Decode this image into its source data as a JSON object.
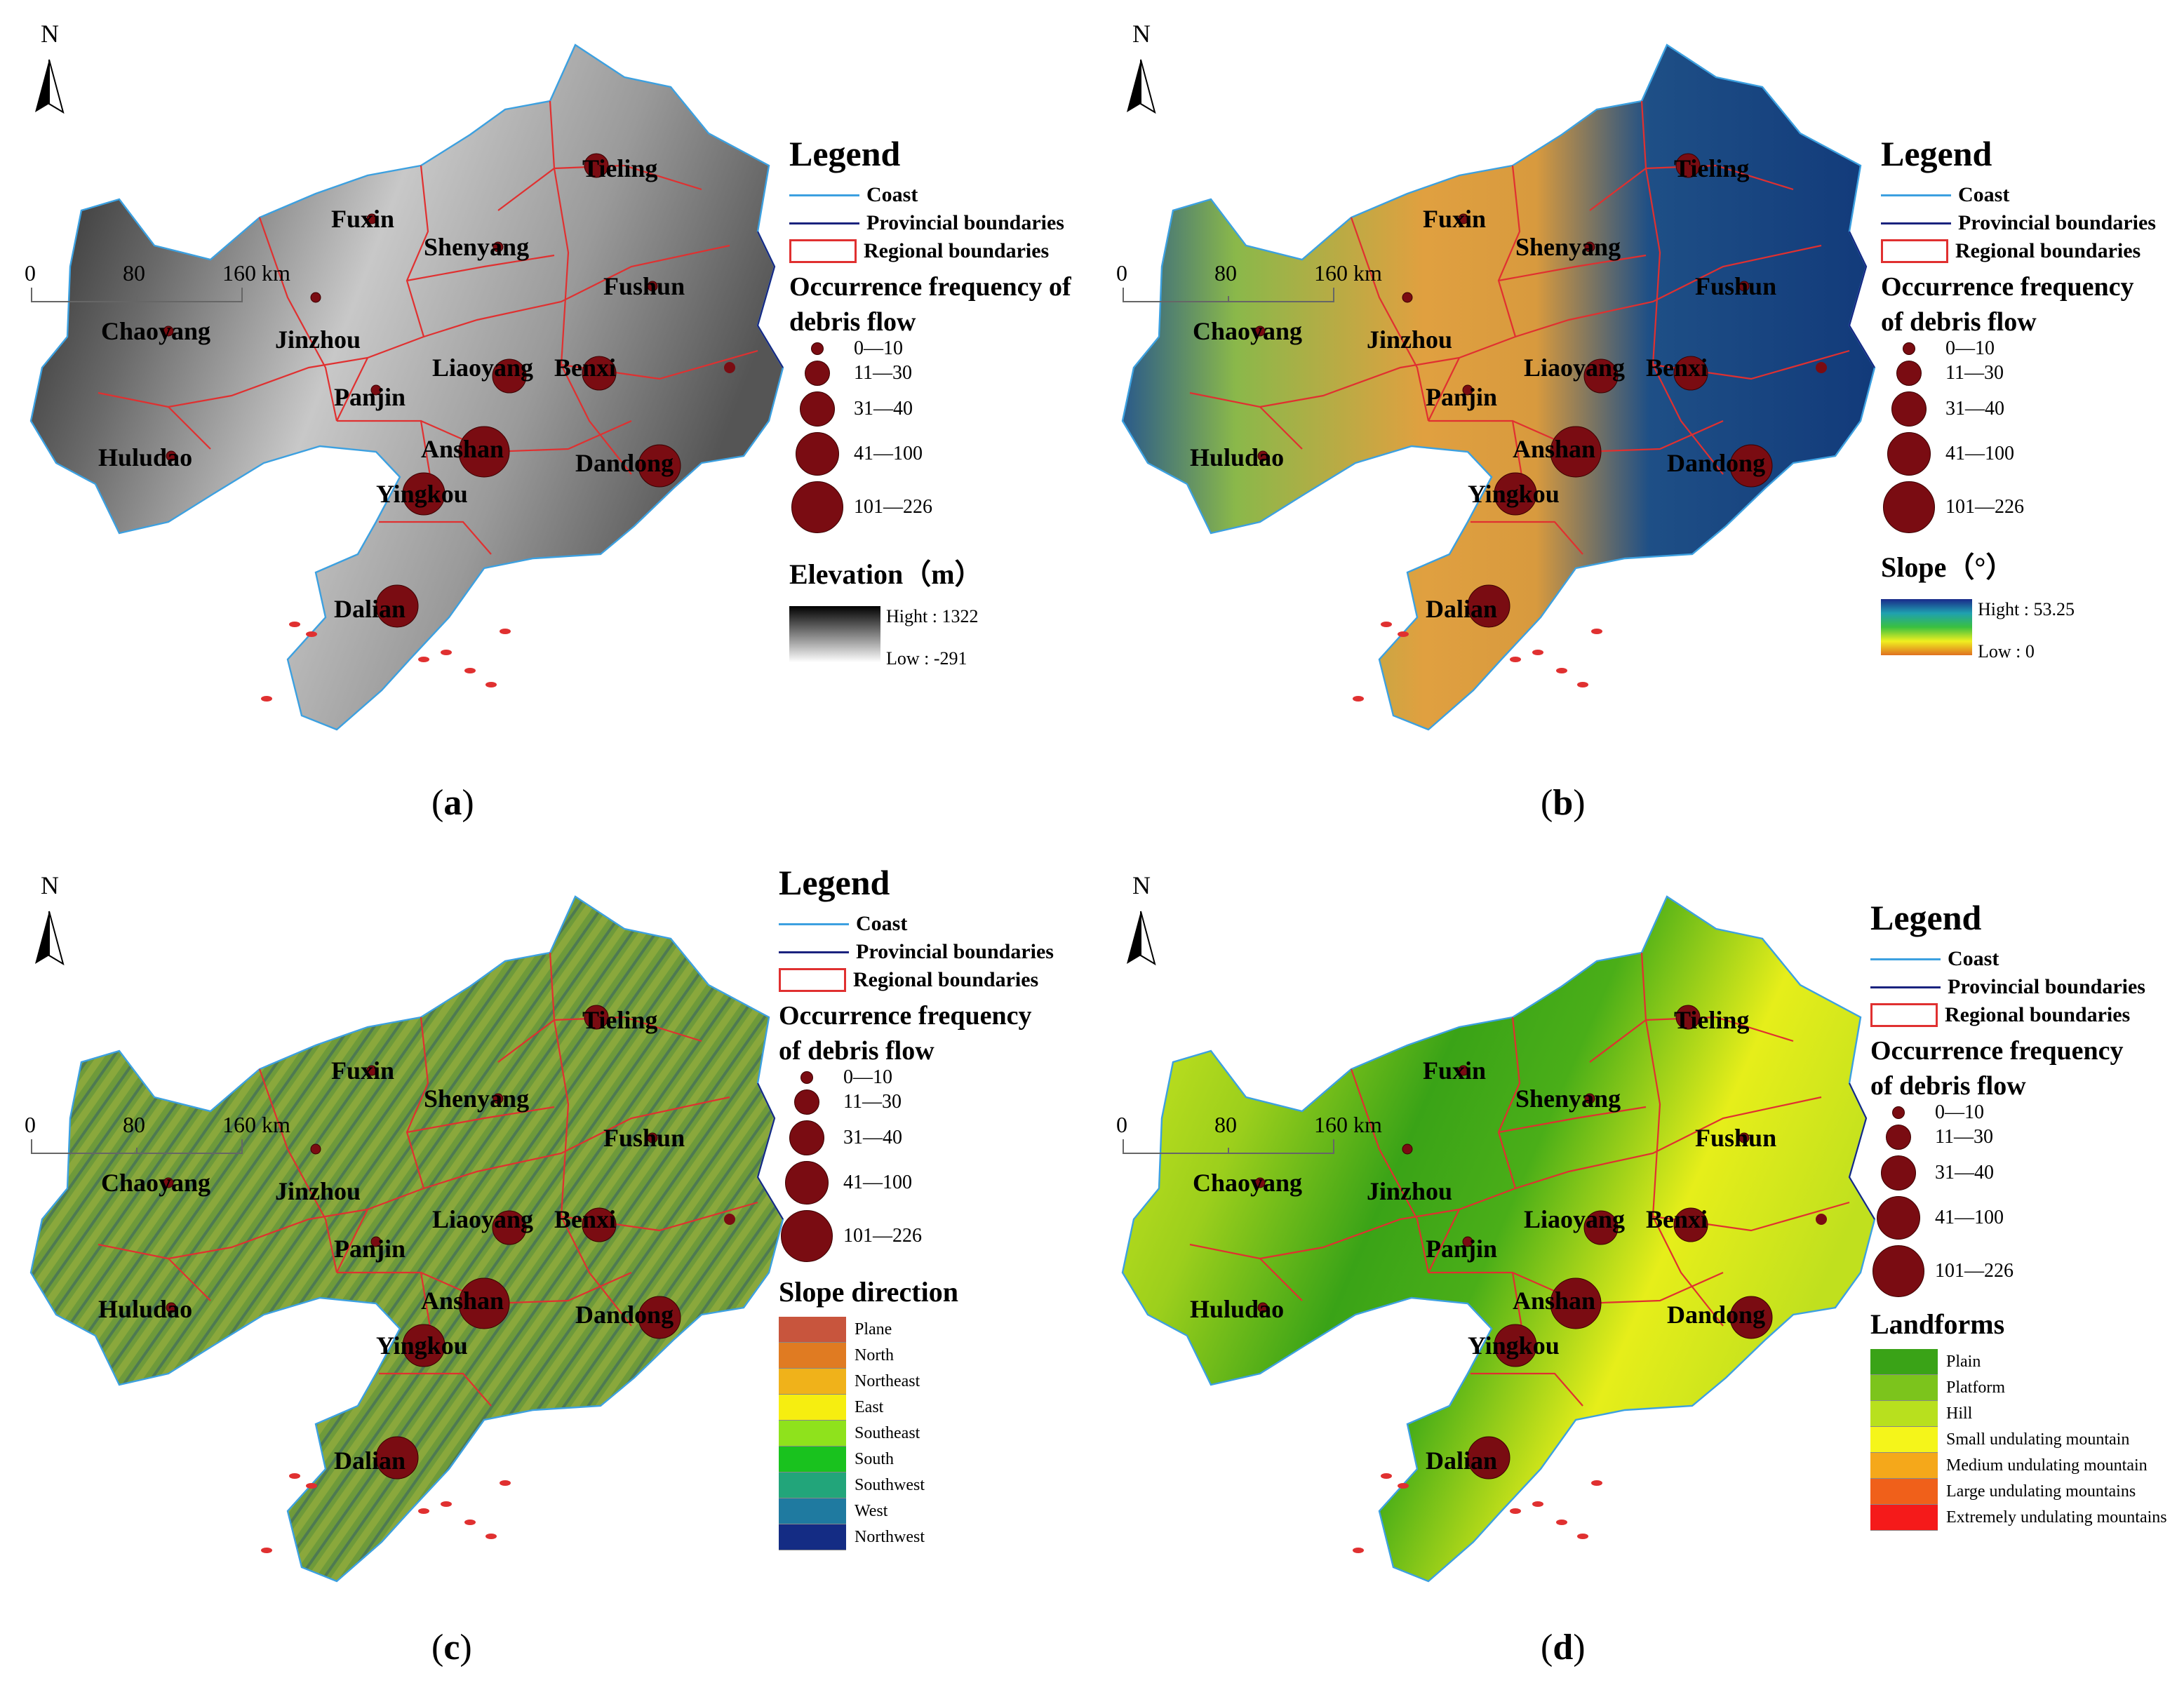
{
  "north_label": "N",
  "cities": [
    {
      "name": "Tieling",
      "freq": "11-30"
    },
    {
      "name": "Fuxin",
      "freq": "0-10"
    },
    {
      "name": "Shenyang",
      "freq": "0-10"
    },
    {
      "name": "Fushun",
      "freq": "0-10"
    },
    {
      "name": "Chaoyang",
      "freq": "0-10"
    },
    {
      "name": "Jinzhou",
      "freq": "0-10"
    },
    {
      "name": "Liaoyang",
      "freq": "31-40"
    },
    {
      "name": "Benxi",
      "freq": "31-40"
    },
    {
      "name": "Panjin",
      "freq": "0-10"
    },
    {
      "name": "Huludao",
      "freq": "0-10"
    },
    {
      "name": "Anshan",
      "freq": "101-226"
    },
    {
      "name": "Dandong",
      "freq": "41-100"
    },
    {
      "name": "Yingkou",
      "freq": "41-100"
    },
    {
      "name": "Dalian",
      "freq": "41-100"
    }
  ],
  "scale": {
    "ticks": [
      "0",
      "80",
      "160 km"
    ]
  },
  "legend": {
    "title": "Legend",
    "coast": "Coast",
    "provincial": "Provincial boundaries",
    "regional": "Regional boundaries",
    "occurrence_title": "Occurrence frequency of debris flow",
    "frequency_classes": [
      "0—10",
      "11—30",
      "31—40",
      "41—100",
      "101—226"
    ]
  },
  "panels": {
    "a": {
      "caption": "a",
      "layer_title": "Elevation（m）",
      "high": "Hight : 1322",
      "low": "Low : -291"
    },
    "b": {
      "caption": "b",
      "layer_title": "Slope（°）",
      "high": "Hight : 53.25",
      "low": "Low : 0"
    },
    "c": {
      "caption": "c",
      "layer_title": "Slope direction",
      "classes": [
        {
          "label": "Plane",
          "color": "#c8553d"
        },
        {
          "label": "North",
          "color": "#e07b22"
        },
        {
          "label": "Northeast",
          "color": "#f0b21a"
        },
        {
          "label": "East",
          "color": "#f6ee10"
        },
        {
          "label": "Southeast",
          "color": "#8fe21c"
        },
        {
          "label": "South",
          "color": "#19c21e"
        },
        {
          "label": "Southwest",
          "color": "#22a57a"
        },
        {
          "label": "West",
          "color": "#1f7aa0"
        },
        {
          "label": "Northwest",
          "color": "#142c84"
        }
      ]
    },
    "d": {
      "caption": "d",
      "layer_title": "Landforms",
      "classes": [
        {
          "label": "Plain",
          "color": "#3aa317"
        },
        {
          "label": "Platform",
          "color": "#7cc41c"
        },
        {
          "label": "Hill",
          "color": "#b8e01e"
        },
        {
          "label": "Small undulating mountain",
          "color": "#f5f51a"
        },
        {
          "label": "Medium undulating mountain",
          "color": "#f5a81a"
        },
        {
          "label": "Large undulating mountains",
          "color": "#f0601a"
        },
        {
          "label": "Extremely undulating mountains",
          "color": "#f51a1a"
        }
      ]
    }
  },
  "colors": {
    "bubble": "#7a0c12",
    "regional_boundary": "#e03030",
    "provincial_boundary": "#1a237e",
    "coast": "#3ca0e0"
  }
}
